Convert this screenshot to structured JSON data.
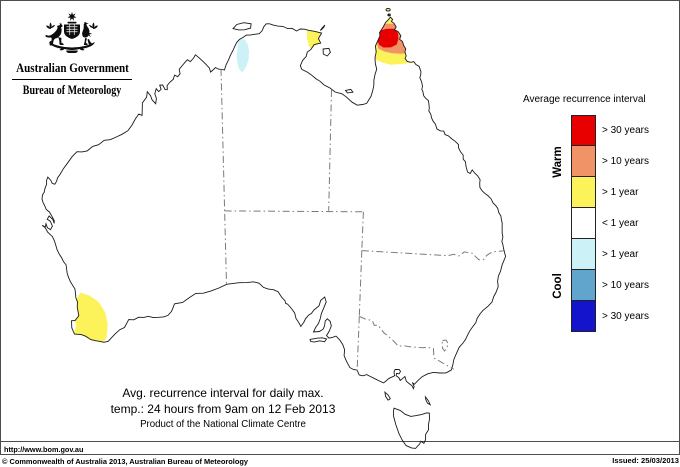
{
  "logo": {
    "government": "Australian Government",
    "bureau": "Bureau of Meteorology",
    "arms_icon": "australian-coat-of-arms"
  },
  "legend": {
    "title": "Average recurrence interval",
    "warm_label": "Warm",
    "cool_label": "Cool",
    "entries": [
      {
        "label": "> 30 years",
        "color": "#e80000",
        "group": "warm"
      },
      {
        "label": "> 10 years",
        "color": "#f09468",
        "group": "warm"
      },
      {
        "label": "> 1 year",
        "color": "#fbf359",
        "group": "warm"
      },
      {
        "label": "< 1 year",
        "color": "#ffffff",
        "group": "neutral"
      },
      {
        "label": "> 1 year",
        "color": "#ccf2f7",
        "group": "cool"
      },
      {
        "label": "> 10 years",
        "color": "#62a5cc",
        "group": "cool"
      },
      {
        "label": "> 30 years",
        "color": "#1414cc",
        "group": "cool"
      }
    ]
  },
  "map_title": {
    "line1": "Avg. recurrence interval for daily max.",
    "line2": "temp.: 24 hours from 9am on 12 Feb 2013",
    "line3": "Product of the National Climate Centre"
  },
  "footer": {
    "url": "http://www.bom.gov.au",
    "copyright": "© Commonwealth of Australia 2013, Australian Bureau of Meteorology",
    "issued": "Issued: 25/03/2013"
  },
  "colors": {
    "coastline": "#1a1a1a",
    "state_border": "#7a7a7a",
    "frame": "#4d4d4d"
  },
  "map_regions": [
    {
      "area": "cape-york-peninsula",
      "category": "> 30 years",
      "group": "warm"
    },
    {
      "area": "cape-york-peninsula-ring",
      "category": "> 10 years",
      "group": "warm"
    },
    {
      "area": "cape-york-peninsula-outer",
      "category": "> 1 year",
      "group": "warm"
    },
    {
      "area": "north-east-arnhem-land",
      "category": "> 1 year",
      "group": "warm"
    },
    {
      "area": "daly-river-northern-territory",
      "category": "> 1 year",
      "group": "cool"
    },
    {
      "area": "south-west-western-australia",
      "category": "> 1 year",
      "group": "warm"
    }
  ]
}
